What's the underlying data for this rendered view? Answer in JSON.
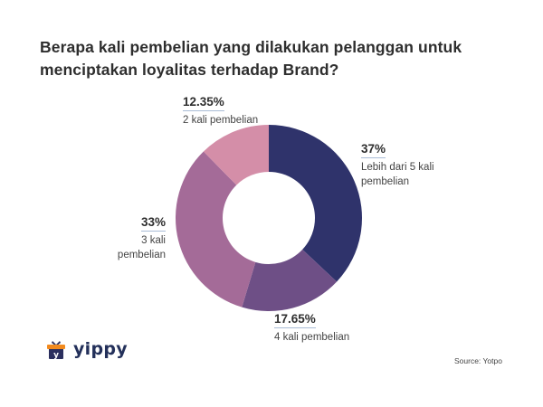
{
  "title": "Berapa kali pembelian yang dilakukan pelanggan untuk menciptakan loyalitas terhadap Brand?",
  "chart_data": {
    "type": "pie",
    "variant": "donut",
    "title": "Berapa kali pembelian yang dilakukan pelanggan untuk menciptakan loyalitas terhadap Brand?",
    "categories": [
      "Lebih dari 5 kali pembelian",
      "4 kali pembelian",
      "3 kali pembelian",
      "2 kali pembelian"
    ],
    "values": [
      37,
      17.65,
      33,
      12.35
    ],
    "value_labels": [
      "37%",
      "17.65%",
      "33%",
      "12.35%"
    ],
    "colors": [
      "#2f336b",
      "#6e4f86",
      "#a46b98",
      "#d48ea8"
    ],
    "start_angle_deg": 0,
    "direction": "clockwise",
    "legend": "none (direct labels)"
  },
  "labels": {
    "s0": {
      "pct": "37%",
      "line1": "Lebih dari 5 kali",
      "line2": "pembelian"
    },
    "s1": {
      "pct": "17.65%",
      "line1": "4 kali pembelian"
    },
    "s2": {
      "pct": "33%",
      "line1": "3 kali",
      "line2": "pembelian"
    },
    "s3": {
      "pct": "12.35%",
      "line1": "2 kali pembelian"
    }
  },
  "brand": {
    "name": "yippy",
    "logo_letter": "y",
    "colors": {
      "box": "#2b2f5e",
      "ribbon": "#f28a1e"
    }
  },
  "source": "Source: Yotpo"
}
